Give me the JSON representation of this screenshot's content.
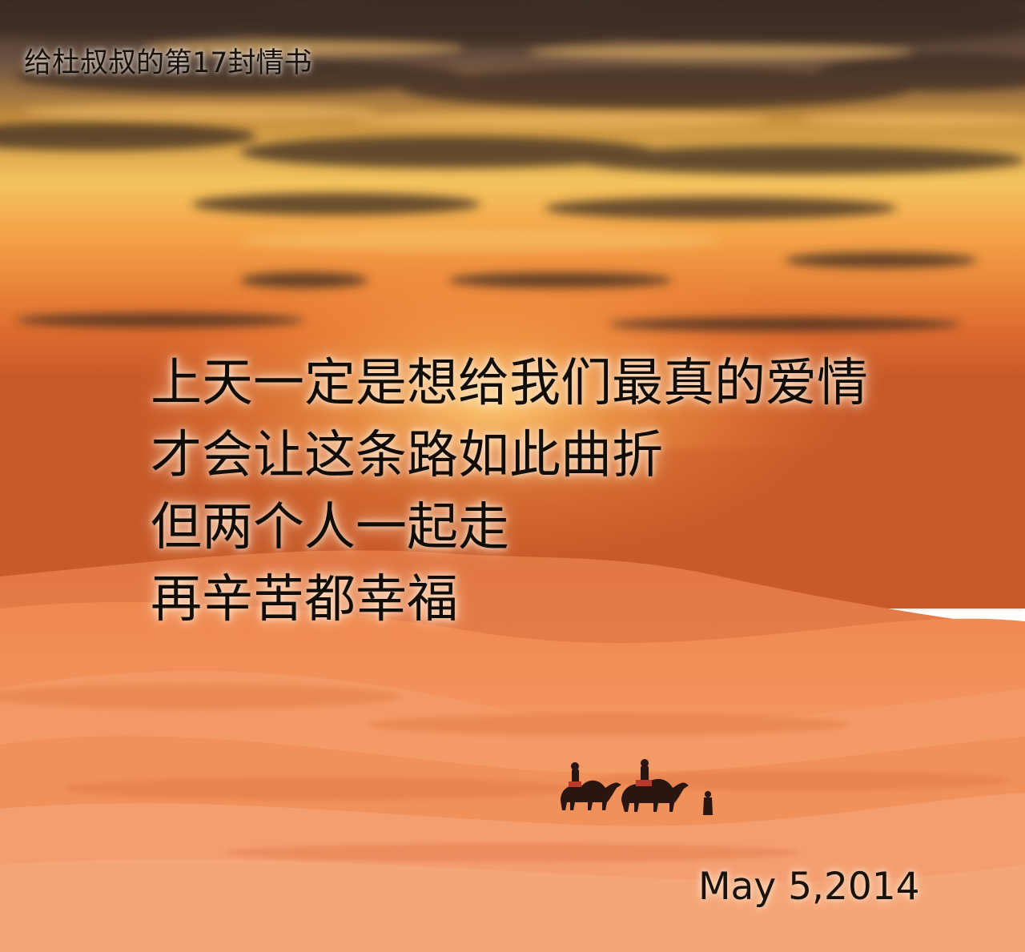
{
  "card": {
    "title": "给杜叔叔的第17封情书",
    "poem_lines": [
      "上天一定是想给我们最真的爱情",
      "才会让这条路如此曲折",
      "但两个人一起走",
      "再辛苦都幸福"
    ],
    "date": "May 5,2014"
  },
  "scene": {
    "subject": "sunset-desert-camel-caravan",
    "colors": {
      "sky_top": "#3b2a24",
      "sky_glow": "#f6b24e",
      "horizon": "#e86a2a",
      "dune_light": "#f59a6a",
      "dune_shadow": "#e0743f",
      "silhouette": "#2a1510"
    }
  }
}
